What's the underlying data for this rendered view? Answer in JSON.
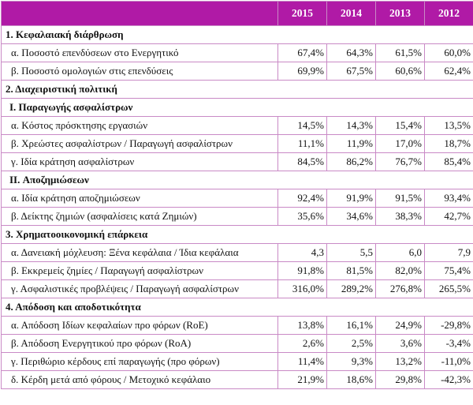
{
  "header": {
    "years": [
      "2015",
      "2014",
      "2013",
      "2012"
    ]
  },
  "rows": [
    {
      "type": "section",
      "label": "1. Κεφαλαιακή διάρθρωση"
    },
    {
      "type": "item",
      "label": "α. Ποσοστό επενδύσεων στο Ενεργητικό",
      "values": [
        "67,4%",
        "64,3%",
        "61,5%",
        "60,0%"
      ]
    },
    {
      "type": "item",
      "label": "β. Ποσοστό ομολογιών στις επενδύσεις",
      "values": [
        "69,9%",
        "67,5%",
        "60,6%",
        "62,4%"
      ]
    },
    {
      "type": "section",
      "label": "2. Διαχειριστική πολιτική"
    },
    {
      "type": "sub",
      "label": "I. Παραγωγής ασφαλίστρων"
    },
    {
      "type": "item",
      "label": "α. Κόστος πρόσκτησης εργασιών",
      "values": [
        "14,5%",
        "14,3%",
        "15,4%",
        "13,5%"
      ]
    },
    {
      "type": "item",
      "label": "β. Χρεώστες ασφαλίστρων / Παραγωγή ασφαλίστρων",
      "values": [
        "11,1%",
        "11,9%",
        "17,0%",
        "18,7%"
      ]
    },
    {
      "type": "item",
      "label": "γ. Ιδία κράτηση ασφαλίστρων",
      "values": [
        "84,5%",
        "86,2%",
        "76,7%",
        "85,4%"
      ]
    },
    {
      "type": "sub",
      "label": "II. Αποζημιώσεων"
    },
    {
      "type": "item",
      "label": "α. Ιδία κράτηση αποζημιώσεων",
      "values": [
        "92,4%",
        "91,9%",
        "91,5%",
        "93,4%"
      ]
    },
    {
      "type": "item",
      "label": "β. Δείκτης ζημιών (ασφαλίσεις κατά Ζημιών)",
      "values": [
        "35,6%",
        "34,6%",
        "38,3%",
        "42,7%"
      ]
    },
    {
      "type": "section",
      "label": "3. Χρηματοοικονομική επάρκεια"
    },
    {
      "type": "item",
      "label": "α. Δανειακή μόχλευση: Ξένα κεφάλαια / Ίδια κεφάλαια",
      "values": [
        "4,3",
        "5,5",
        "6,0",
        "7,9"
      ]
    },
    {
      "type": "item",
      "label": "β. Εκκρεμείς ζημίες / Παραγωγή ασφαλίστρων",
      "values": [
        "91,8%",
        "81,5%",
        "82,0%",
        "75,4%"
      ]
    },
    {
      "type": "item",
      "label": "γ. Ασφαλιστικές προβλέψεις / Παραγωγή ασφαλίστρων",
      "values": [
        "316,0%",
        "289,2%",
        "276,8%",
        "265,5%"
      ]
    },
    {
      "type": "section",
      "label": "4. Απόδοση και αποδοτικότητα"
    },
    {
      "type": "item",
      "label": "α. Απόδοση Ιδίων κεφαλαίων προ φόρων (RoE)",
      "values": [
        "13,8%",
        "16,1%",
        "24,9%",
        "-29,8%"
      ]
    },
    {
      "type": "item",
      "label": "β. Απόδοση Ενεργητικού προ φόρων (RoA)",
      "values": [
        "2,6%",
        "2,5%",
        "3,6%",
        "-3,4%"
      ]
    },
    {
      "type": "item",
      "label": "γ. Περιθώριο κέρδους επί παραγωγής (προ φόρων)",
      "values": [
        "11,4%",
        "9,3%",
        "13,2%",
        "-11,0%"
      ]
    },
    {
      "type": "item",
      "label": "δ. Κέρδη μετά από φόρους / Μετοχικό κεφάλαιο",
      "values": [
        "21,9%",
        "18,6%",
        "29,8%",
        "-42,3%"
      ]
    }
  ],
  "colors": {
    "header_bg": "#b01aa6",
    "border": "#c98ac6"
  }
}
